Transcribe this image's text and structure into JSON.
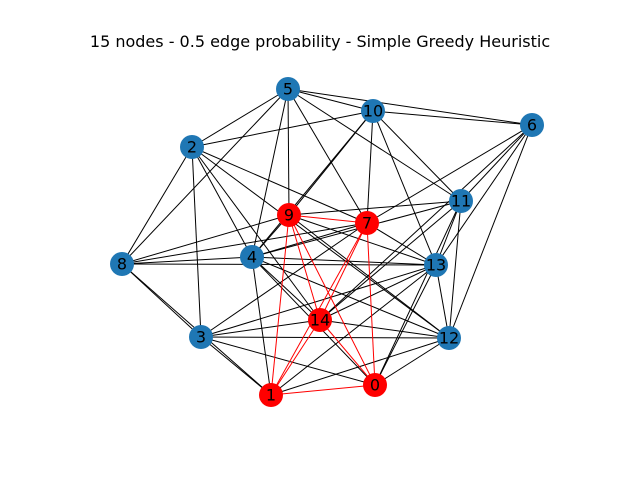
{
  "title": "15 nodes - 0.5 edge probability - Simple Greedy Heuristic",
  "colors": {
    "default_node": "#1f77b4",
    "highlight_node": "#ff0000",
    "default_edge": "#000000",
    "highlight_edge": "#ff0000"
  },
  "nodes": [
    {
      "id": "0",
      "highlighted": true
    },
    {
      "id": "1",
      "highlighted": true
    },
    {
      "id": "2",
      "highlighted": false
    },
    {
      "id": "3",
      "highlighted": false
    },
    {
      "id": "4",
      "highlighted": false
    },
    {
      "id": "5",
      "highlighted": false
    },
    {
      "id": "6",
      "highlighted": false
    },
    {
      "id": "7",
      "highlighted": true
    },
    {
      "id": "8",
      "highlighted": false
    },
    {
      "id": "9",
      "highlighted": true
    },
    {
      "id": "10",
      "highlighted": false
    },
    {
      "id": "11",
      "highlighted": false
    },
    {
      "id": "12",
      "highlighted": false
    },
    {
      "id": "13",
      "highlighted": false
    },
    {
      "id": "14",
      "highlighted": true
    }
  ],
  "edges": [
    [
      "0",
      "1"
    ],
    [
      "0",
      "7"
    ],
    [
      "0",
      "9"
    ],
    [
      "0",
      "14"
    ],
    [
      "1",
      "7"
    ],
    [
      "1",
      "9"
    ],
    [
      "1",
      "14"
    ],
    [
      "7",
      "9"
    ],
    [
      "7",
      "14"
    ],
    [
      "9",
      "14"
    ],
    [
      "5",
      "10"
    ],
    [
      "5",
      "6"
    ],
    [
      "5",
      "2"
    ],
    [
      "5",
      "8"
    ],
    [
      "5",
      "9"
    ],
    [
      "5",
      "7"
    ],
    [
      "5",
      "11"
    ],
    [
      "5",
      "4"
    ],
    [
      "10",
      "2"
    ],
    [
      "10",
      "6"
    ],
    [
      "10",
      "11"
    ],
    [
      "10",
      "13"
    ],
    [
      "10",
      "7"
    ],
    [
      "10",
      "9"
    ],
    [
      "10",
      "4"
    ],
    [
      "6",
      "11"
    ],
    [
      "6",
      "13"
    ],
    [
      "6",
      "12"
    ],
    [
      "6",
      "7"
    ],
    [
      "6",
      "14"
    ],
    [
      "2",
      "8"
    ],
    [
      "2",
      "3"
    ],
    [
      "2",
      "4"
    ],
    [
      "2",
      "14"
    ],
    [
      "2",
      "12"
    ],
    [
      "2",
      "7"
    ],
    [
      "11",
      "9"
    ],
    [
      "11",
      "4"
    ],
    [
      "11",
      "13"
    ],
    [
      "11",
      "12"
    ],
    [
      "11",
      "14"
    ],
    [
      "11",
      "0"
    ],
    [
      "9",
      "4"
    ],
    [
      "9",
      "8"
    ],
    [
      "9",
      "13"
    ],
    [
      "9",
      "12"
    ],
    [
      "7",
      "4"
    ],
    [
      "7",
      "13"
    ],
    [
      "7",
      "8"
    ],
    [
      "8",
      "4"
    ],
    [
      "8",
      "3"
    ],
    [
      "8",
      "1"
    ],
    [
      "8",
      "13"
    ],
    [
      "4",
      "1"
    ],
    [
      "4",
      "0"
    ],
    [
      "4",
      "12"
    ],
    [
      "4",
      "13"
    ],
    [
      "13",
      "3"
    ],
    [
      "13",
      "14"
    ],
    [
      "13",
      "1"
    ],
    [
      "13",
      "12"
    ],
    [
      "13",
      "0"
    ],
    [
      "3",
      "1"
    ],
    [
      "3",
      "0"
    ],
    [
      "3",
      "12"
    ],
    [
      "3",
      "14"
    ],
    [
      "3",
      "7"
    ],
    [
      "12",
      "14"
    ],
    [
      "12",
      "1"
    ],
    [
      "12",
      "0"
    ],
    [
      "14",
      "4"
    ]
  ]
}
